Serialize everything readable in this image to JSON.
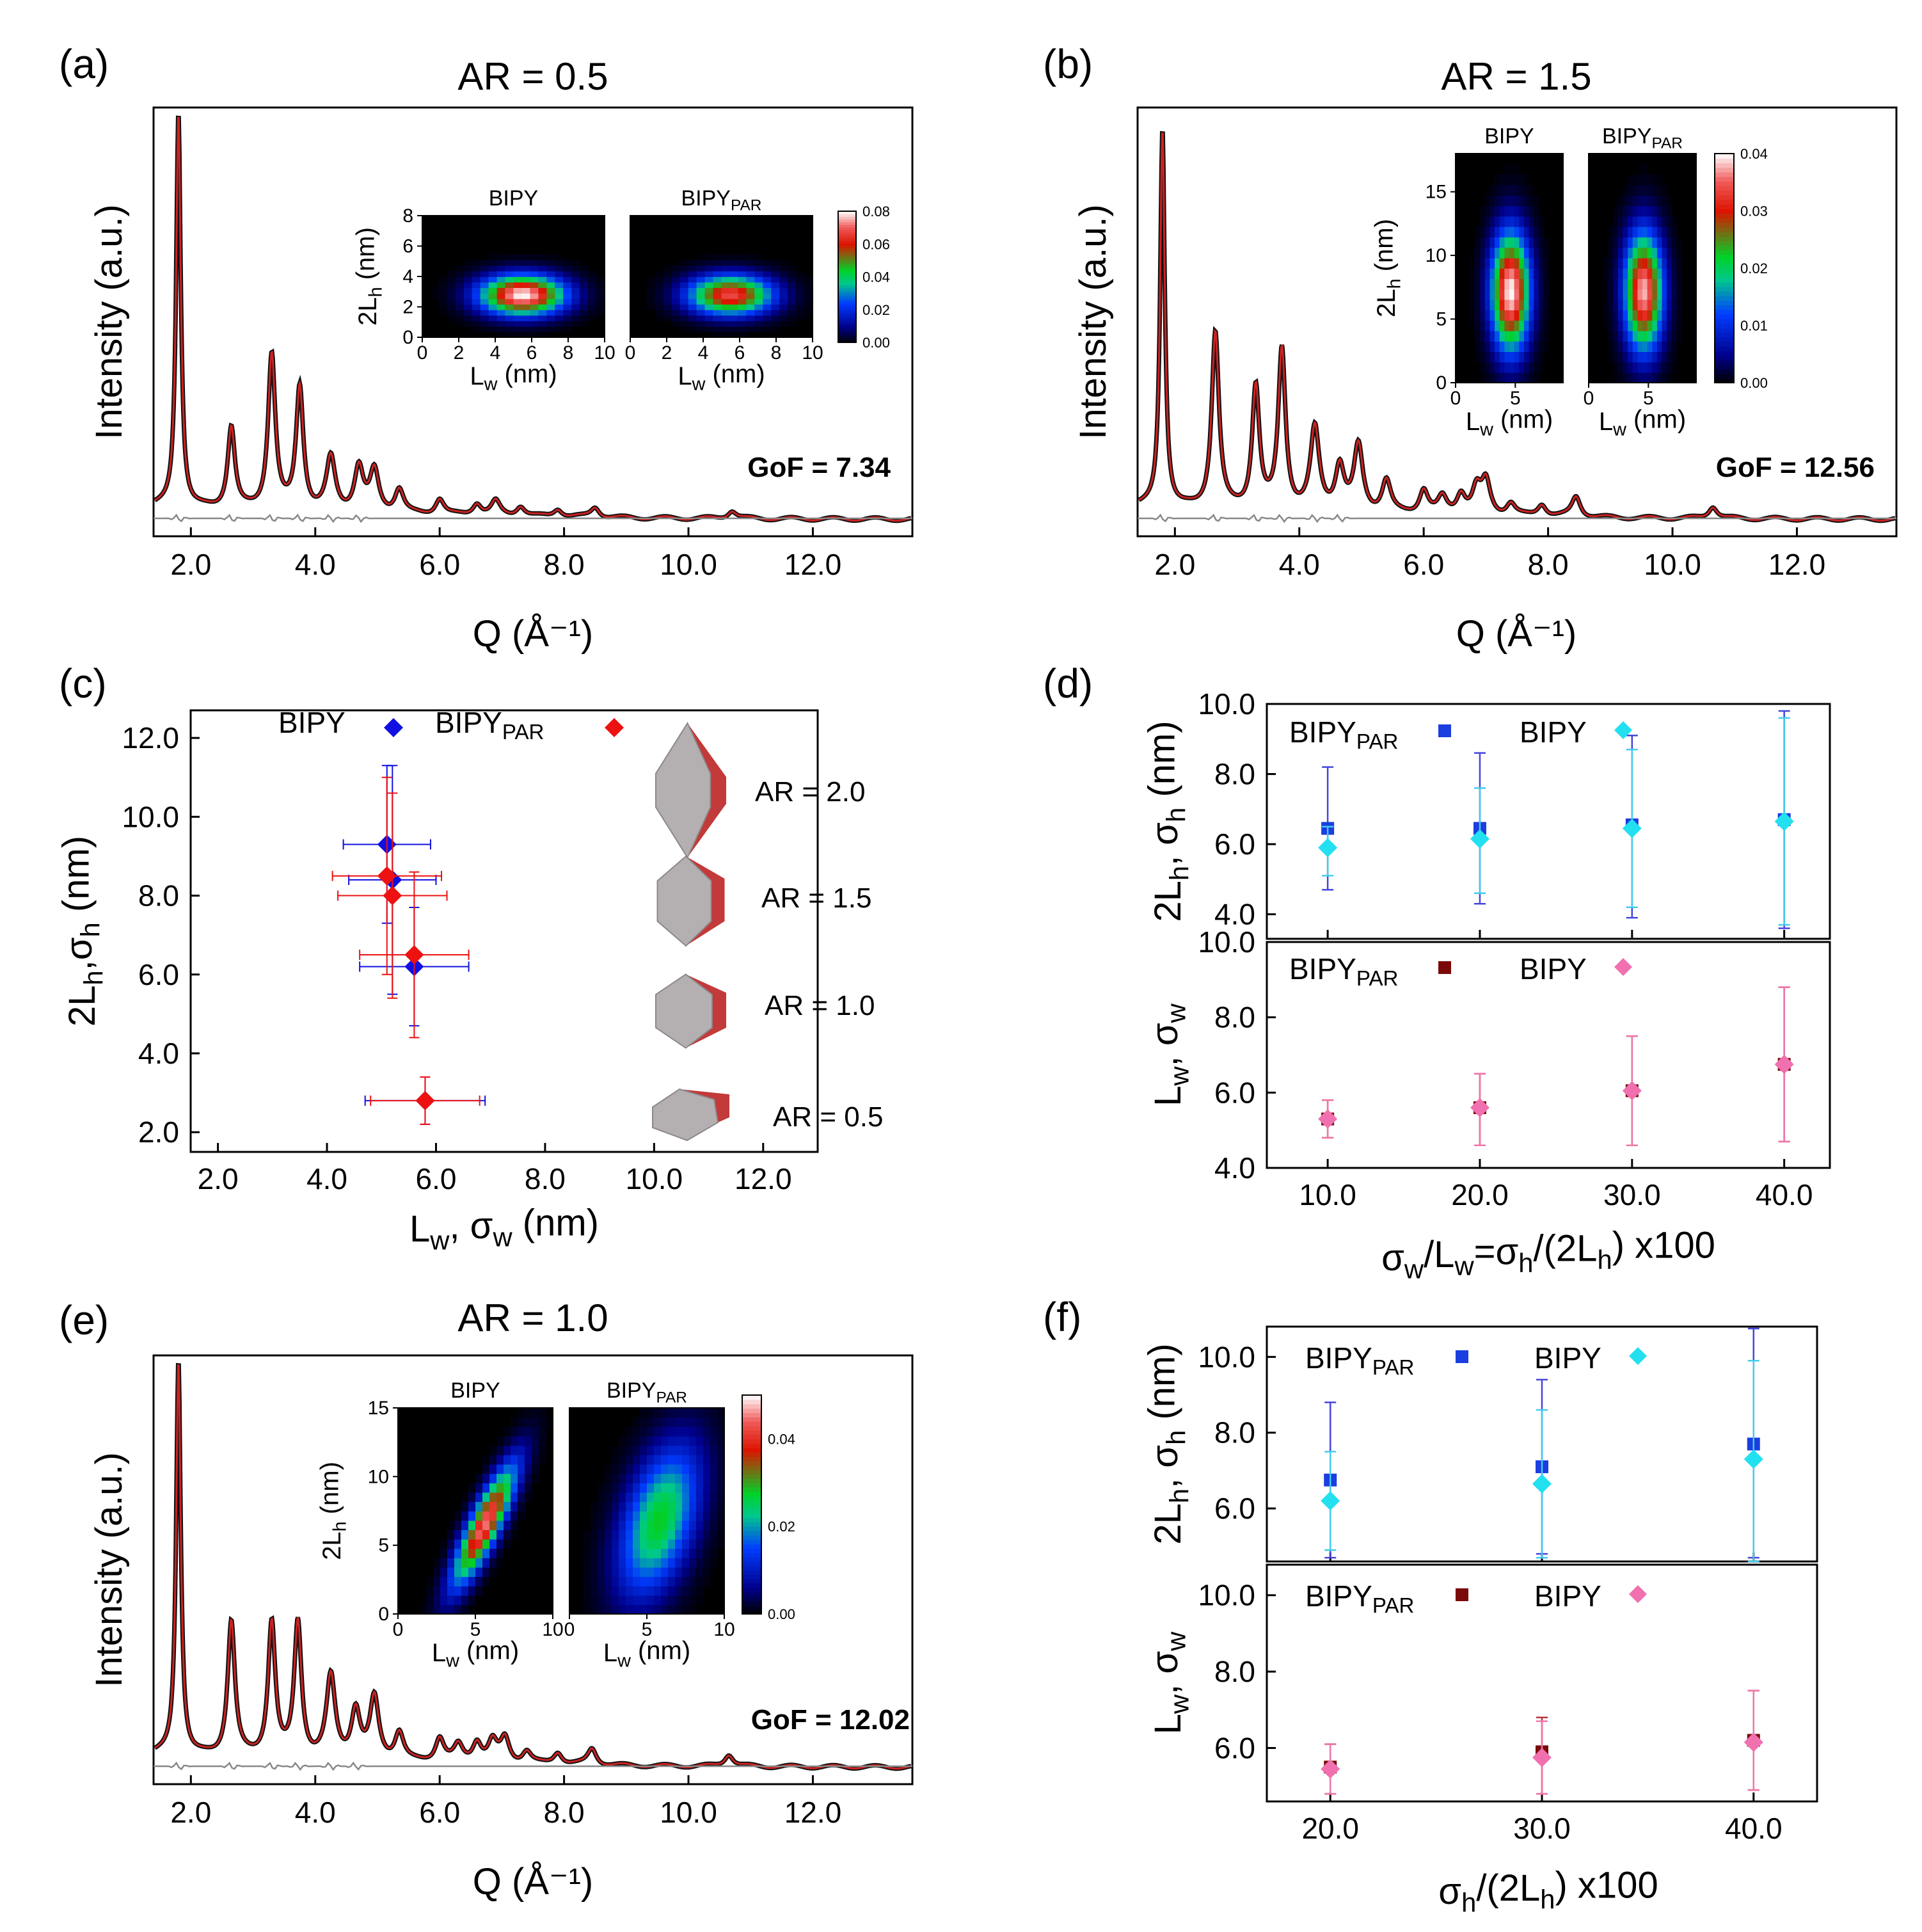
{
  "figure": {
    "panels": [
      {
        "id": "a",
        "label": "(a)",
        "title": "AR = 0.5",
        "gof": "GoF = 7.34"
      },
      {
        "id": "b",
        "label": "(b)",
        "title": "AR = 1.5",
        "gof": "GoF = 12.56"
      },
      {
        "id": "c",
        "label": "(c)"
      },
      {
        "id": "d",
        "label": "(d)"
      },
      {
        "id": "e",
        "label": "(e)",
        "title": "AR = 1.0",
        "gof": "GoF = 12.02"
      },
      {
        "id": "f",
        "label": "(f)"
      }
    ]
  },
  "chart_data": [
    {
      "panel": "a",
      "type": "line",
      "title": "AR = 0.5",
      "xlabel": "Q (Å⁻¹)",
      "ylabel": "Intensity (a.u.)",
      "xlim": [
        1.4,
        13.6
      ],
      "ylim": [
        -0.04,
        1.0
      ],
      "xticks": [
        "2.0",
        "4.0",
        "6.0",
        "8.0",
        "10.0",
        "12.0"
      ],
      "gof": "GoF = 7.34",
      "peaks": [
        {
          "q": 1.8,
          "h": 0.96
        },
        {
          "q": 2.65,
          "h": 0.2
        },
        {
          "q": 3.3,
          "h": 0.38
        },
        {
          "q": 3.75,
          "h": 0.3
        },
        {
          "q": 4.25,
          "h": 0.13
        },
        {
          "q": 4.7,
          "h": 0.11
        },
        {
          "q": 4.95,
          "h": 0.1
        },
        {
          "q": 5.35,
          "h": 0.06
        },
        {
          "q": 6.0,
          "h": 0.04
        },
        {
          "q": 6.6,
          "h": 0.03
        },
        {
          "q": 6.9,
          "h": 0.035
        },
        {
          "q": 7.3,
          "h": 0.025
        },
        {
          "q": 7.9,
          "h": 0.02
        },
        {
          "q": 8.5,
          "h": 0.025
        },
        {
          "q": 10.7,
          "h": 0.02
        }
      ],
      "residual": "difference curve (grey)",
      "insets": {
        "maps": [
          {
            "title": "BIPY",
            "center_lw": 5.5,
            "center_2lh": 2.8,
            "sd_lw": 1.6,
            "sd_2lh": 0.9,
            "peak": 0.08
          },
          {
            "title": "BIPYPAR",
            "title_main": "BIPY",
            "title_sub": "PAR",
            "center_lw": 5.5,
            "center_2lh": 2.8,
            "sd_lw": 1.6,
            "sd_2lh": 0.9,
            "peak": 0.068
          }
        ],
        "xlabel_main": "L",
        "xlabel_sub": "w",
        "xlabel_unit": " (nm)",
        "ylabel_main": "2L",
        "ylabel_sub": "h",
        "ylabel_unit": " (nm)",
        "xlim": [
          0,
          10
        ],
        "ylim": [
          0,
          8
        ],
        "xticks": [
          "0",
          "2",
          "4",
          "6",
          "8",
          "10"
        ],
        "yticks": [
          "0",
          "2",
          "4",
          "6",
          "8"
        ],
        "colorbar": {
          "min": 0,
          "max": 0.08,
          "ticks": [
            "0.00",
            "0.02",
            "0.04",
            "0.06",
            "0.08"
          ]
        }
      }
    },
    {
      "panel": "b",
      "type": "line",
      "title": "AR = 1.5",
      "xlabel": "Q (Å⁻¹)",
      "ylabel": "Intensity (a.u.)",
      "xlim": [
        1.4,
        13.6
      ],
      "ylim": [
        -0.04,
        1.0
      ],
      "xticks": [
        "2.0",
        "4.0",
        "6.0",
        "8.0",
        "10.0",
        "12.0"
      ],
      "gof": "GoF = 12.56",
      "peaks": [
        {
          "q": 1.8,
          "h": 0.92
        },
        {
          "q": 2.65,
          "h": 0.43
        },
        {
          "q": 3.3,
          "h": 0.3
        },
        {
          "q": 3.72,
          "h": 0.39
        },
        {
          "q": 4.25,
          "h": 0.2
        },
        {
          "q": 4.65,
          "h": 0.11
        },
        {
          "q": 4.95,
          "h": 0.16
        },
        {
          "q": 5.4,
          "h": 0.08
        },
        {
          "q": 6.0,
          "h": 0.06
        },
        {
          "q": 6.3,
          "h": 0.04
        },
        {
          "q": 6.6,
          "h": 0.05
        },
        {
          "q": 6.85,
          "h": 0.06
        },
        {
          "q": 7.0,
          "h": 0.08
        },
        {
          "q": 7.4,
          "h": 0.03
        },
        {
          "q": 7.9,
          "h": 0.03
        },
        {
          "q": 8.45,
          "h": 0.05
        },
        {
          "q": 10.65,
          "h": 0.03
        }
      ],
      "residual": "difference curve (grey)",
      "insets": {
        "maps": [
          {
            "title": "BIPY",
            "center_lw": 4.6,
            "center_2lh": 7.2,
            "sd_lw": 1.1,
            "sd_2lh": 3.2,
            "peak": 0.04
          },
          {
            "title": "BIPYPAR",
            "title_main": "BIPY",
            "title_sub": "PAR",
            "center_lw": 4.6,
            "center_2lh": 7.2,
            "sd_lw": 1.1,
            "sd_2lh": 3.2,
            "peak": 0.038
          }
        ],
        "xlabel_main": "L",
        "xlabel_sub": "w",
        "xlabel_unit": " (nm)",
        "ylabel_main": "2L",
        "ylabel_sub": "h",
        "ylabel_unit": " (nm)",
        "xlim": [
          0,
          9
        ],
        "ylim": [
          0,
          18
        ],
        "xticks": [
          "0",
          "5"
        ],
        "yticks": [
          "0",
          "5",
          "10",
          "15"
        ],
        "colorbar": {
          "min": 0,
          "max": 0.04,
          "ticks": [
            "0.00",
            "0.01",
            "0.02",
            "0.03",
            "0.04"
          ]
        }
      }
    },
    {
      "panel": "c",
      "type": "scatter",
      "xlabel": "Lw, σw (nm)",
      "ylabel": "2Lh,σh (nm)",
      "xlim": [
        1.5,
        13.0
      ],
      "ylim": [
        1.5,
        12.7
      ],
      "xticks": [
        "2.0",
        "4.0",
        "6.0",
        "8.0",
        "10.0",
        "12.0"
      ],
      "yticks": [
        "2.0",
        "4.0",
        "6.0",
        "8.0",
        "10.0",
        "12.0"
      ],
      "series": [
        {
          "name": "BIPY",
          "legend_main": "BIPY",
          "color": "#1010e0",
          "points": [
            {
              "x": 5.1,
              "y": 9.3,
              "ex": 0.8,
              "ey": 2.0
            },
            {
              "x": 5.2,
              "y": 8.4,
              "ex": 0.8,
              "ey": 2.9
            },
            {
              "x": 5.6,
              "y": 6.2,
              "ex": 1.0,
              "ey": 1.5
            },
            {
              "x": 5.8,
              "y": 2.8,
              "ex": 1.1,
              "ey": 0.6
            }
          ]
        },
        {
          "name": "BIPYPAR",
          "legend_main": "BIPY",
          "legend_sub": "PAR",
          "color": "#ee1111",
          "points": [
            {
              "x": 5.1,
              "y": 8.5,
              "ex": 1.0,
              "ey": 2.5
            },
            {
              "x": 5.2,
              "y": 8.0,
              "ex": 1.0,
              "ey": 2.6
            },
            {
              "x": 5.6,
              "y": 6.5,
              "ex": 1.0,
              "ey": 2.1
            },
            {
              "x": 5.8,
              "y": 2.8,
              "ex": 1.0,
              "ey": 0.6
            }
          ]
        }
      ],
      "shapes": [
        {
          "label": "AR = 2.0"
        },
        {
          "label": "AR = 1.5"
        },
        {
          "label": "AR = 1.0"
        },
        {
          "label": "AR = 0.5"
        }
      ]
    },
    {
      "panel": "d",
      "type": "scatter",
      "xlabel": "σw/Lw=σh/(2Lh) x100",
      "xlim": [
        6.0,
        43.0
      ],
      "xticks": [
        "10.0",
        "20.0",
        "30.0",
        "40.0"
      ],
      "subplots": [
        {
          "ylabel": "2Lh, σh (nm)",
          "ylim": [
            3.3,
            10.0
          ],
          "yticks": [
            "4.0",
            "6.0",
            "8.0",
            "10.0"
          ],
          "series": [
            {
              "name": "BIPYPAR",
              "legend_main": "BIPY",
              "legend_sub": "PAR",
              "color": "#1a3ee0",
              "marker": "square",
              "err_color": "#4444dd",
              "points": [
                {
                  "x": 10,
                  "y": 6.45,
                  "lo": 4.7,
                  "hi": 8.2
                },
                {
                  "x": 20,
                  "y": 6.45,
                  "lo": 4.3,
                  "hi": 8.6
                },
                {
                  "x": 30,
                  "y": 6.55,
                  "lo": 3.9,
                  "hi": 9.1
                },
                {
                  "x": 40,
                  "y": 6.7,
                  "lo": 3.6,
                  "hi": 9.8
                }
              ]
            },
            {
              "name": "BIPY",
              "legend_main": "BIPY",
              "color": "#22e0f0",
              "marker": "diamond",
              "err_color": "#44ccee",
              "points": [
                {
                  "x": 10,
                  "y": 5.9,
                  "lo": 5.1,
                  "hi": 6.5
                },
                {
                  "x": 20,
                  "y": 6.15,
                  "lo": 4.6,
                  "hi": 7.6
                },
                {
                  "x": 30,
                  "y": 6.45,
                  "lo": 4.2,
                  "hi": 8.7
                },
                {
                  "x": 40,
                  "y": 6.65,
                  "lo": 3.7,
                  "hi": 9.6
                }
              ]
            }
          ]
        },
        {
          "ylabel": "Lw, σw",
          "ylim": [
            4.0,
            10.0
          ],
          "yticks": [
            "4.0",
            "6.0",
            "8.0",
            "10.0"
          ],
          "series": [
            {
              "name": "BIPYPAR",
              "legend_main": "BIPY",
              "legend_sub": "PAR",
              "color": "#7a0a0a",
              "marker": "square",
              "err_color": "#bb3344",
              "points": [
                {
                  "x": 10,
                  "y": 5.3,
                  "lo": 4.8,
                  "hi": 5.8
                },
                {
                  "x": 20,
                  "y": 5.6,
                  "lo": 4.6,
                  "hi": 6.5
                },
                {
                  "x": 30,
                  "y": 6.05,
                  "lo": 4.6,
                  "hi": 7.5
                },
                {
                  "x": 40,
                  "y": 6.75,
                  "lo": 4.7,
                  "hi": 8.8
                }
              ]
            },
            {
              "name": "BIPY",
              "legend_main": "BIPY",
              "color": "#f070b0",
              "marker": "diamond",
              "err_color": "#ee77aa",
              "points": [
                {
                  "x": 10,
                  "y": 5.3,
                  "lo": 4.8,
                  "hi": 5.8
                },
                {
                  "x": 20,
                  "y": 5.6,
                  "lo": 4.6,
                  "hi": 6.5
                },
                {
                  "x": 30,
                  "y": 6.05,
                  "lo": 4.6,
                  "hi": 7.5
                },
                {
                  "x": 40,
                  "y": 6.75,
                  "lo": 4.7,
                  "hi": 8.8
                }
              ]
            }
          ]
        }
      ]
    },
    {
      "panel": "e",
      "type": "line",
      "title": "AR = 1.0",
      "xlabel": "Q (Å⁻¹)",
      "ylabel": "Intensity (a.u.)",
      "xlim": [
        1.4,
        13.6
      ],
      "ylim": [
        -0.04,
        1.0
      ],
      "xticks": [
        "2.0",
        "4.0",
        "6.0",
        "8.0",
        "10.0",
        "12.0"
      ],
      "gof": "GoF = 12.02",
      "peaks": [
        {
          "q": 1.8,
          "h": 0.96
        },
        {
          "q": 2.65,
          "h": 0.33
        },
        {
          "q": 3.3,
          "h": 0.33
        },
        {
          "q": 3.72,
          "h": 0.33
        },
        {
          "q": 4.25,
          "h": 0.2
        },
        {
          "q": 4.65,
          "h": 0.12
        },
        {
          "q": 4.95,
          "h": 0.15
        },
        {
          "q": 5.35,
          "h": 0.07
        },
        {
          "q": 6.0,
          "h": 0.06
        },
        {
          "q": 6.3,
          "h": 0.04
        },
        {
          "q": 6.6,
          "h": 0.05
        },
        {
          "q": 6.85,
          "h": 0.05
        },
        {
          "q": 7.05,
          "h": 0.06
        },
        {
          "q": 7.4,
          "h": 0.03
        },
        {
          "q": 7.9,
          "h": 0.03
        },
        {
          "q": 8.45,
          "h": 0.04
        },
        {
          "q": 10.65,
          "h": 0.03
        }
      ],
      "residual": "difference curve (grey)",
      "insets": {
        "maps": [
          {
            "title": "BIPY",
            "center_lw": 5.6,
            "center_2lh": 6.5,
            "sd_lw": 1.4,
            "sd_2lh": 3.0,
            "rho": 0.85,
            "peak": 0.045
          },
          {
            "title": "BIPYPAR",
            "title_main": "BIPY",
            "title_sub": "PAR",
            "center_lw": 5.8,
            "center_2lh": 6.8,
            "sd_lw": 1.8,
            "sd_2lh": 3.8,
            "rho": 0.45,
            "peak": 0.028
          }
        ],
        "xlabel_main": "L",
        "xlabel_sub": "w",
        "xlabel_unit": " (nm)",
        "ylabel_main": "2L",
        "ylabel_sub": "h",
        "ylabel_unit": " (nm)",
        "xlim": [
          0,
          10
        ],
        "ylim": [
          0,
          15
        ],
        "xticks": [
          "0",
          "5",
          "10"
        ],
        "yticks": [
          "0",
          "5",
          "10",
          "15"
        ],
        "colorbar": {
          "min": 0,
          "max": 0.05,
          "ticks": [
            "0.00",
            "0.02",
            "0.04"
          ]
        }
      }
    },
    {
      "panel": "f",
      "type": "scatter",
      "xlabel": "σh/(2Lh) x100",
      "xlim": [
        17.0,
        43.0
      ],
      "xticks": [
        "20.0",
        "30.0",
        "40.0"
      ],
      "subplots": [
        {
          "ylabel": "2Lh, σh (nm)",
          "ylim": [
            4.6,
            10.8
          ],
          "yticks": [
            "6.0",
            "8.0",
            "10.0"
          ],
          "series": [
            {
              "name": "BIPYPAR",
              "legend_main": "BIPY",
              "legend_sub": "PAR",
              "color": "#1a3ee0",
              "marker": "square",
              "err_color": "#4444dd",
              "points": [
                {
                  "x": 20,
                  "y": 6.75,
                  "lo": 4.7,
                  "hi": 8.8
                },
                {
                  "x": 30,
                  "y": 7.1,
                  "lo": 4.8,
                  "hi": 9.4
                },
                {
                  "x": 40,
                  "y": 7.7,
                  "lo": 4.7,
                  "hi": 10.75
                }
              ]
            },
            {
              "name": "BIPY",
              "legend_main": "BIPY",
              "color": "#22e0f0",
              "marker": "diamond",
              "err_color": "#44ccee",
              "points": [
                {
                  "x": 20,
                  "y": 6.2,
                  "lo": 4.9,
                  "hi": 7.5
                },
                {
                  "x": 30,
                  "y": 6.65,
                  "lo": 4.7,
                  "hi": 8.6
                },
                {
                  "x": 40,
                  "y": 7.3,
                  "lo": 4.6,
                  "hi": 9.9
                }
              ]
            }
          ]
        },
        {
          "ylabel": "Lw, σw",
          "ylim": [
            4.6,
            10.8
          ],
          "yticks": [
            "6.0",
            "8.0",
            "10.0"
          ],
          "series": [
            {
              "name": "BIPYPAR",
              "legend_main": "BIPY",
              "legend_sub": "PAR",
              "color": "#7a0a0a",
              "marker": "square",
              "err_color": "#bb3344",
              "points": [
                {
                  "x": 20,
                  "y": 5.5,
                  "lo": 4.8,
                  "hi": 6.1
                },
                {
                  "x": 30,
                  "y": 5.9,
                  "lo": 4.8,
                  "hi": 6.8
                },
                {
                  "x": 40,
                  "y": 6.2,
                  "lo": 4.9,
                  "hi": 7.5
                }
              ]
            },
            {
              "name": "BIPY",
              "legend_main": "BIPY",
              "color": "#f070b0",
              "marker": "diamond",
              "err_color": "#ee77aa",
              "points": [
                {
                  "x": 20,
                  "y": 5.45,
                  "lo": 4.8,
                  "hi": 6.1
                },
                {
                  "x": 30,
                  "y": 5.75,
                  "lo": 4.8,
                  "hi": 6.7
                },
                {
                  "x": 40,
                  "y": 6.15,
                  "lo": 4.9,
                  "hi": 7.5
                }
              ]
            }
          ]
        }
      ]
    }
  ]
}
